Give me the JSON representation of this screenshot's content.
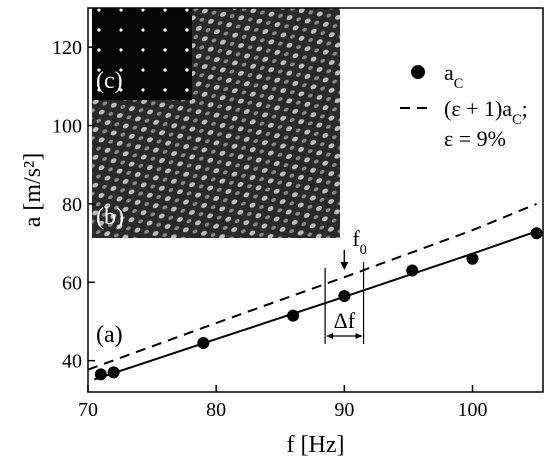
{
  "chart_data": {
    "type": "scatter",
    "xlabel": "f [Hz]",
    "ylabel": "a [m/s²]",
    "xlim": [
      70,
      105.5
    ],
    "ylim": [
      32,
      130
    ],
    "xticks": [
      70,
      80,
      90,
      100
    ],
    "yticks": [
      40,
      60,
      80,
      100,
      120
    ],
    "series": [
      {
        "type": "scatter",
        "legend": [
          {
            "text": "a"
          },
          {
            "text": "C",
            "sub": true
          }
        ],
        "color": "#000",
        "x": [
          71,
          72,
          79,
          86,
          90,
          95.3,
          100,
          105
        ],
        "values": [
          36.5,
          37,
          44.5,
          51.5,
          56.5,
          63,
          66,
          72.5
        ]
      },
      {
        "type": "line",
        "style": "solid",
        "color": "#000",
        "x": [
          70.5,
          80,
          90,
          100,
          105
        ],
        "values": [
          35.2,
          45.5,
          56.3,
          67.3,
          73
        ]
      },
      {
        "type": "line",
        "style": "dashed",
        "color": "#000",
        "legend": [
          {
            "text": "(ε + 1)a"
          },
          {
            "text": "C",
            "sub": true
          },
          {
            "text": ";"
          }
        ],
        "x": [
          70,
          80,
          90,
          100,
          105
        ],
        "values": [
          37.7,
          49.6,
          61.3,
          73.3,
          80
        ]
      }
    ],
    "epsilon_label": "ε = 9%",
    "panel_labels": [
      "(a)",
      "(b)",
      "(c)"
    ],
    "f0_label": [
      {
        "text": "f"
      },
      {
        "text": "0",
        "sub": true
      }
    ],
    "f0": 90,
    "delta_f_label": "Δf",
    "delta_f_range": [
      88.5,
      91.5
    ]
  }
}
